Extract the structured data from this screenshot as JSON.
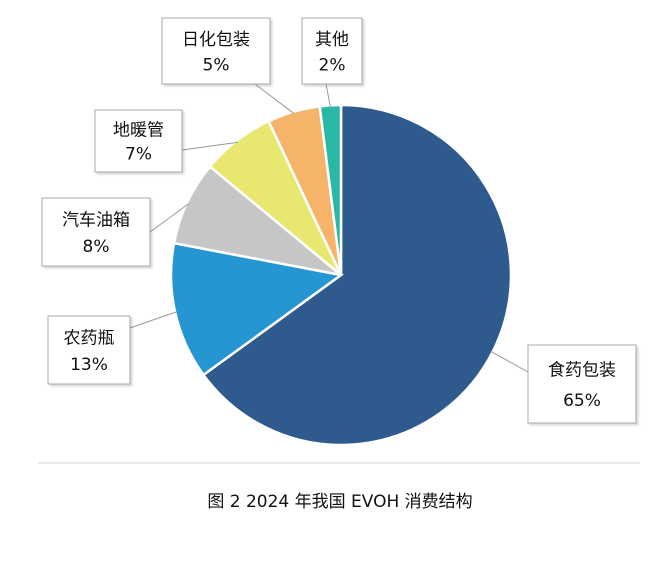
{
  "chart_data": {
    "type": "pie",
    "title": "图 2  2024 年我国 EVOH 消费结构",
    "categories": [
      "食药包装",
      "农药瓶",
      "汽车油箱",
      "地暖管",
      "日化包装",
      "其他"
    ],
    "values": [
      65,
      13,
      8,
      7,
      5,
      2
    ],
    "value_labels": [
      "65%",
      "13%",
      "8%",
      "7%",
      "5%",
      "2%"
    ],
    "colors": [
      "#2e5a8e",
      "#2596d1",
      "#c6c6c6",
      "#e8e76f",
      "#f5b46a",
      "#28b8a4"
    ]
  }
}
